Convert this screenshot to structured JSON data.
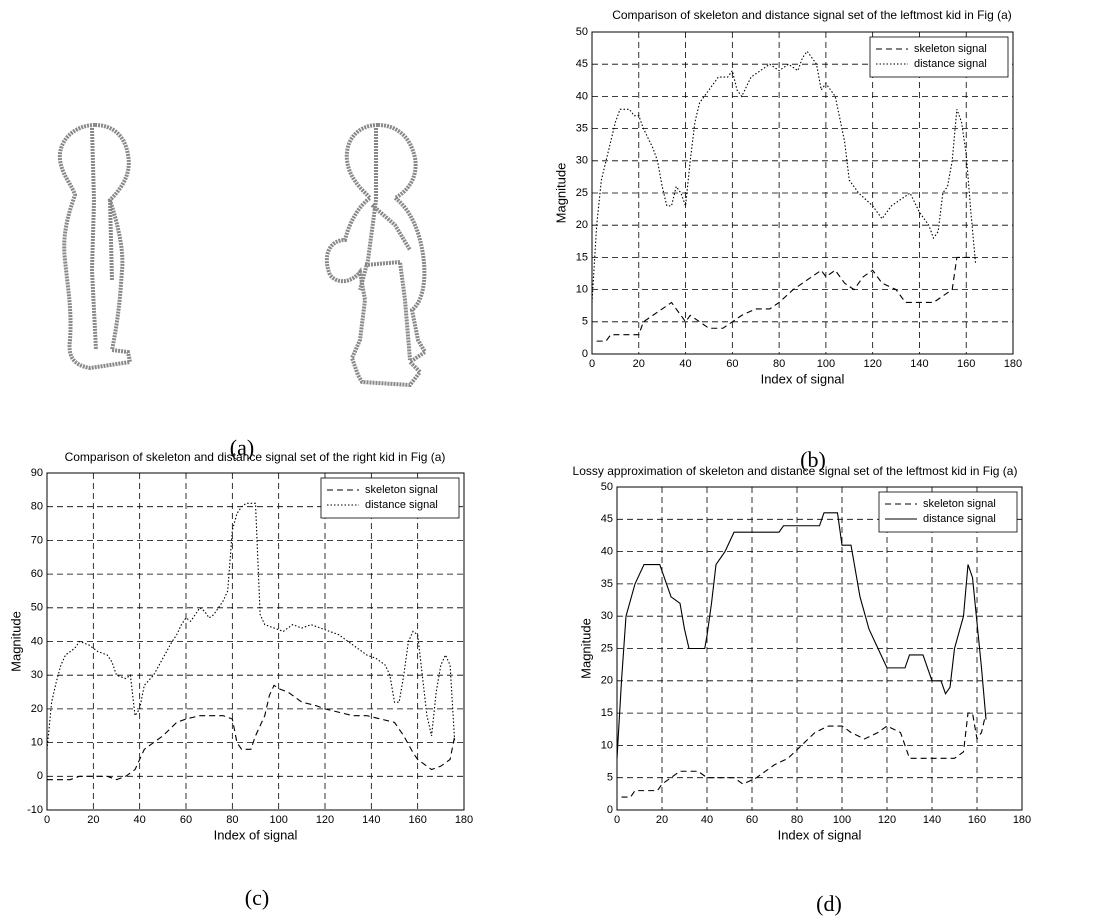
{
  "figure": {
    "caption": "(a)"
  },
  "chart_data": [
    {
      "type": "line",
      "caption": "(b)",
      "title": "Comparison of skeleton and distance signal set of the leftmost kid in Fig (a)",
      "xlabel": "Index of signal",
      "ylabel": "Magnitude",
      "xlim": [
        0,
        180
      ],
      "ylim": [
        0,
        50
      ],
      "xticks": [
        0,
        20,
        40,
        60,
        80,
        100,
        120,
        140,
        160,
        180
      ],
      "yticks": [
        0,
        5,
        10,
        15,
        20,
        25,
        30,
        35,
        40,
        45,
        50
      ],
      "grid": true,
      "legend": "upper right",
      "series": [
        {
          "name": "skeleton signal",
          "color": "#000000",
          "style": "dashed",
          "x": [
            2,
            6,
            8,
            16,
            20,
            22,
            26,
            30,
            34,
            36,
            40,
            42,
            46,
            50,
            56,
            60,
            64,
            70,
            76,
            80,
            86,
            90,
            94,
            98,
            100,
            104,
            108,
            112,
            116,
            120,
            124,
            130,
            134,
            140,
            146,
            150,
            154,
            156,
            160,
            164
          ],
          "values": [
            2,
            2,
            3,
            3,
            3,
            5,
            6,
            7,
            8,
            7,
            5,
            6,
            5,
            4,
            4,
            5,
            6,
            7,
            7,
            8,
            10,
            11,
            12,
            13,
            12,
            13,
            11,
            10,
            12,
            13,
            11,
            10,
            8,
            8,
            8,
            9,
            10,
            15,
            15,
            15
          ]
        },
        {
          "name": "distance signal",
          "color": "#000000",
          "style": "dotted",
          "x": [
            0,
            2,
            4,
            6,
            8,
            10,
            12,
            16,
            18,
            20,
            22,
            26,
            28,
            30,
            32,
            34,
            36,
            38,
            40,
            42,
            44,
            46,
            50,
            54,
            58,
            60,
            62,
            64,
            68,
            72,
            76,
            80,
            84,
            88,
            90,
            92,
            94,
            96,
            98,
            100,
            104,
            108,
            110,
            114,
            120,
            124,
            128,
            132,
            136,
            140,
            144,
            146,
            148,
            150,
            152,
            154,
            156,
            158,
            160,
            162,
            164
          ],
          "values": [
            8,
            20,
            27,
            30,
            33,
            36,
            38,
            38,
            37,
            37,
            35,
            32,
            30,
            26,
            23,
            23,
            26,
            25,
            23,
            30,
            36,
            39,
            41,
            43,
            43,
            44,
            41,
            40,
            43,
            44,
            45,
            44,
            45,
            44,
            46,
            47,
            46,
            45,
            41,
            42,
            40,
            33,
            27,
            25,
            23,
            21,
            23,
            24,
            25,
            22,
            20,
            18,
            19,
            25,
            26,
            30,
            38,
            36,
            31,
            22,
            14
          ]
        }
      ]
    },
    {
      "type": "line",
      "caption": "(c)",
      "title": "Comparison of skeleton and distance signal set of the right kid in Fig (a)",
      "xlabel": "Index of signal",
      "ylabel": "Magnitude",
      "xlim": [
        0,
        180
      ],
      "ylim": [
        -10,
        90
      ],
      "xticks": [
        0,
        20,
        40,
        60,
        80,
        100,
        120,
        140,
        160,
        180
      ],
      "yticks": [
        -10,
        0,
        10,
        20,
        30,
        40,
        50,
        60,
        70,
        80,
        90
      ],
      "grid": true,
      "legend": "upper right",
      "series": [
        {
          "name": "skeleton signal",
          "color": "#000000",
          "style": "dashed",
          "x": [
            0,
            6,
            10,
            14,
            20,
            26,
            30,
            34,
            38,
            40,
            42,
            46,
            50,
            56,
            60,
            66,
            70,
            76,
            80,
            82,
            84,
            88,
            90,
            94,
            96,
            98,
            100,
            104,
            110,
            116,
            120,
            126,
            132,
            138,
            144,
            150,
            154,
            158,
            160,
            162,
            164,
            166,
            170,
            174,
            176
          ],
          "values": [
            -1,
            -1,
            -1,
            0,
            0,
            0,
            -1,
            0,
            2,
            5,
            8,
            10,
            12,
            16,
            17,
            18,
            18,
            18,
            17,
            10,
            8,
            8,
            12,
            18,
            24,
            27,
            26,
            25,
            22,
            21,
            20,
            19,
            18,
            18,
            17,
            16,
            12,
            7,
            5,
            4,
            3,
            2,
            3,
            5,
            12
          ]
        },
        {
          "name": "distance signal",
          "color": "#000000",
          "style": "dotted",
          "x": [
            0,
            2,
            4,
            6,
            8,
            12,
            14,
            18,
            22,
            26,
            28,
            30,
            34,
            36,
            38,
            40,
            42,
            46,
            50,
            54,
            56,
            58,
            60,
            62,
            66,
            68,
            70,
            72,
            74,
            76,
            78,
            80,
            82,
            84,
            86,
            88,
            90,
            92,
            94,
            98,
            102,
            106,
            110,
            114,
            118,
            122,
            126,
            130,
            134,
            138,
            142,
            146,
            148,
            150,
            152,
            154,
            156,
            158,
            160,
            162,
            164,
            166,
            168,
            170,
            172,
            174,
            176
          ],
          "values": [
            8,
            22,
            28,
            33,
            36,
            38,
            40,
            39,
            37,
            36,
            34,
            30,
            29,
            30,
            18,
            20,
            27,
            30,
            35,
            40,
            42,
            45,
            47,
            46,
            50,
            49,
            47,
            48,
            50,
            52,
            55,
            73,
            78,
            80,
            81,
            81,
            81,
            48,
            45,
            44,
            43,
            45,
            44,
            45,
            44,
            43,
            42,
            40,
            38,
            36,
            35,
            33,
            30,
            22,
            22,
            30,
            40,
            43,
            42,
            30,
            18,
            12,
            25,
            33,
            36,
            33,
            10
          ]
        }
      ]
    },
    {
      "type": "line",
      "caption": "(d)",
      "title": "Lossy approximation of skeleton and distance signal set of the leftmost kid in Fig (a)",
      "xlabel": "Index of signal",
      "ylabel": "Magnitude",
      "xlim": [
        0,
        180
      ],
      "ylim": [
        0,
        50
      ],
      "xticks": [
        0,
        20,
        40,
        60,
        80,
        100,
        120,
        140,
        160,
        180
      ],
      "yticks": [
        0,
        5,
        10,
        15,
        20,
        25,
        30,
        35,
        40,
        45,
        50
      ],
      "grid": true,
      "legend": "upper right",
      "series": [
        {
          "name": "skeleton signal",
          "color": "#000000",
          "style": "dashed",
          "x": [
            2,
            6,
            8,
            18,
            20,
            24,
            28,
            32,
            36,
            40,
            44,
            52,
            56,
            62,
            66,
            70,
            76,
            82,
            88,
            94,
            100,
            104,
            110,
            116,
            120,
            126,
            130,
            140,
            150,
            154,
            156,
            158,
            160,
            162,
            164
          ],
          "values": [
            2,
            2,
            3,
            3,
            4,
            5,
            6,
            6,
            6,
            5,
            5,
            5,
            4,
            5,
            6,
            7,
            8,
            10,
            12,
            13,
            13,
            12,
            11,
            12,
            13,
            12,
            8,
            8,
            8,
            9,
            15,
            15,
            11,
            12,
            15
          ]
        },
        {
          "name": "distance signal",
          "color": "#000000",
          "style": "solid",
          "x": [
            0,
            2,
            4,
            8,
            12,
            19,
            20,
            24,
            28,
            30,
            32,
            39,
            40,
            42,
            44,
            48,
            52,
            72,
            74,
            90,
            92,
            98,
            100,
            104,
            108,
            112,
            116,
            120,
            128,
            130,
            136,
            140,
            144,
            146,
            148,
            150,
            154,
            156,
            158,
            162,
            164
          ],
          "values": [
            8,
            20,
            30,
            35,
            38,
            38,
            37,
            33,
            32,
            28,
            25,
            25,
            27,
            32,
            38,
            40,
            43,
            43,
            44,
            44,
            46,
            46,
            41,
            41,
            33,
            28,
            25,
            22,
            22,
            24,
            24,
            20,
            20,
            18,
            19,
            25,
            30,
            38,
            36,
            22,
            14
          ]
        }
      ]
    }
  ]
}
